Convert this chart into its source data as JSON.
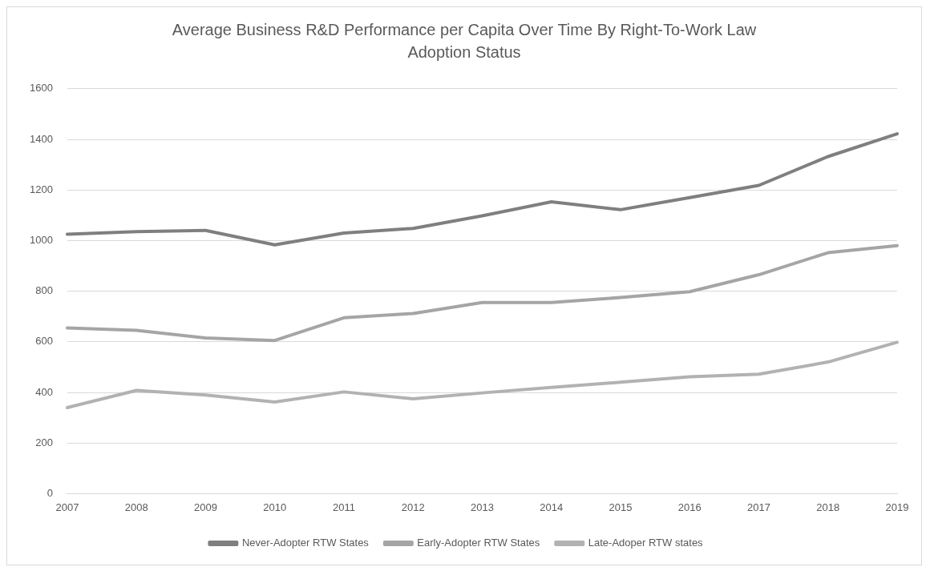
{
  "chart_data": {
    "type": "line",
    "title": "Average Business R&D Performance per Capita Over Time By Right-To-Work Law Adoption Status",
    "categories": [
      "2007",
      "2008",
      "2009",
      "2010",
      "2011",
      "2012",
      "2013",
      "2014",
      "2015",
      "2016",
      "2017",
      "2018",
      "2019"
    ],
    "series": [
      {
        "name": "Never-Adopter RTW States",
        "color": "#7f7f7f",
        "values": [
          1025,
          1035,
          1040,
          983,
          1030,
          1048,
          1098,
          1153,
          1122,
          1170,
          1218,
          1332,
          1422
        ]
      },
      {
        "name": "Early-Adopter RTW States",
        "color": "#a5a5a5",
        "values": [
          655,
          645,
          615,
          605,
          695,
          712,
          755,
          755,
          775,
          798,
          865,
          952,
          980
        ]
      },
      {
        "name": "Late-Adoper RTW states",
        "color": "#b2b2b2",
        "values": [
          340,
          408,
          390,
          362,
          402,
          375,
          398,
          420,
          440,
          462,
          472,
          520,
          598
        ]
      }
    ],
    "ylim": [
      0,
      1600
    ],
    "yticks": [
      0,
      200,
      400,
      600,
      800,
      1000,
      1200,
      1400,
      1600
    ],
    "grid": "y",
    "legend": "bottom",
    "marker": "none",
    "line_style": "solid"
  }
}
